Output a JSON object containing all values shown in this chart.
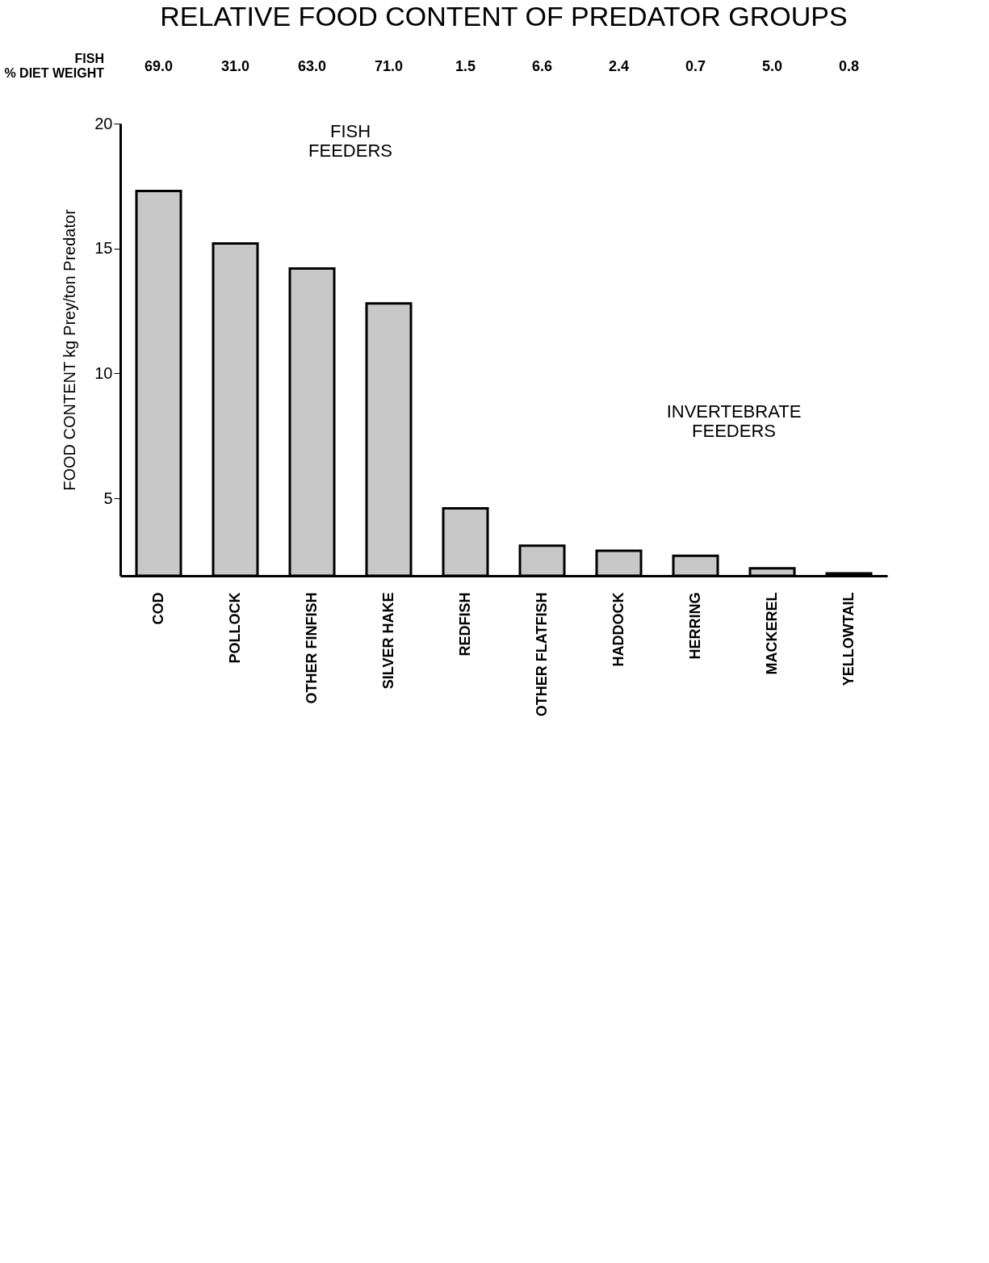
{
  "chart_data": [
    {
      "type": "other",
      "title": "RELATIVE FOOD CONTENT OF PREDATOR GROUPS",
      "ylabel": "FISH\n% DIET WEIGHT",
      "annotations": [
        "69.0",
        "31.0",
        "63.0",
        "71.0",
        "1.5",
        "6.6",
        "2.4",
        "0.7",
        "5.0",
        "0.8"
      ]
    },
    {
      "type": "bar",
      "ylabel": "FOOD CONTENT kg Prey/ton Predator",
      "categories": [
        "COD",
        "POLLOCK",
        "OTHER FINFISH",
        "SILVER HAKE",
        "REDFISH",
        "OTHER FLATFISH",
        "HADDOCK",
        "HERRING",
        "MACKEREL",
        "YELLOWTAIL"
      ],
      "values": [
        17.3,
        15.2,
        14.2,
        12.8,
        4.6,
        3.1,
        2.9,
        2.7,
        2.2,
        2.0
      ],
      "color": "#c8c8c8",
      "ylim": [
        1.9,
        20
      ],
      "yticks": [
        5,
        10,
        15,
        20
      ],
      "grid": false,
      "annotations": [
        "FISH FEEDERS",
        "INVERTEBRATE FEEDERS"
      ]
    }
  ]
}
